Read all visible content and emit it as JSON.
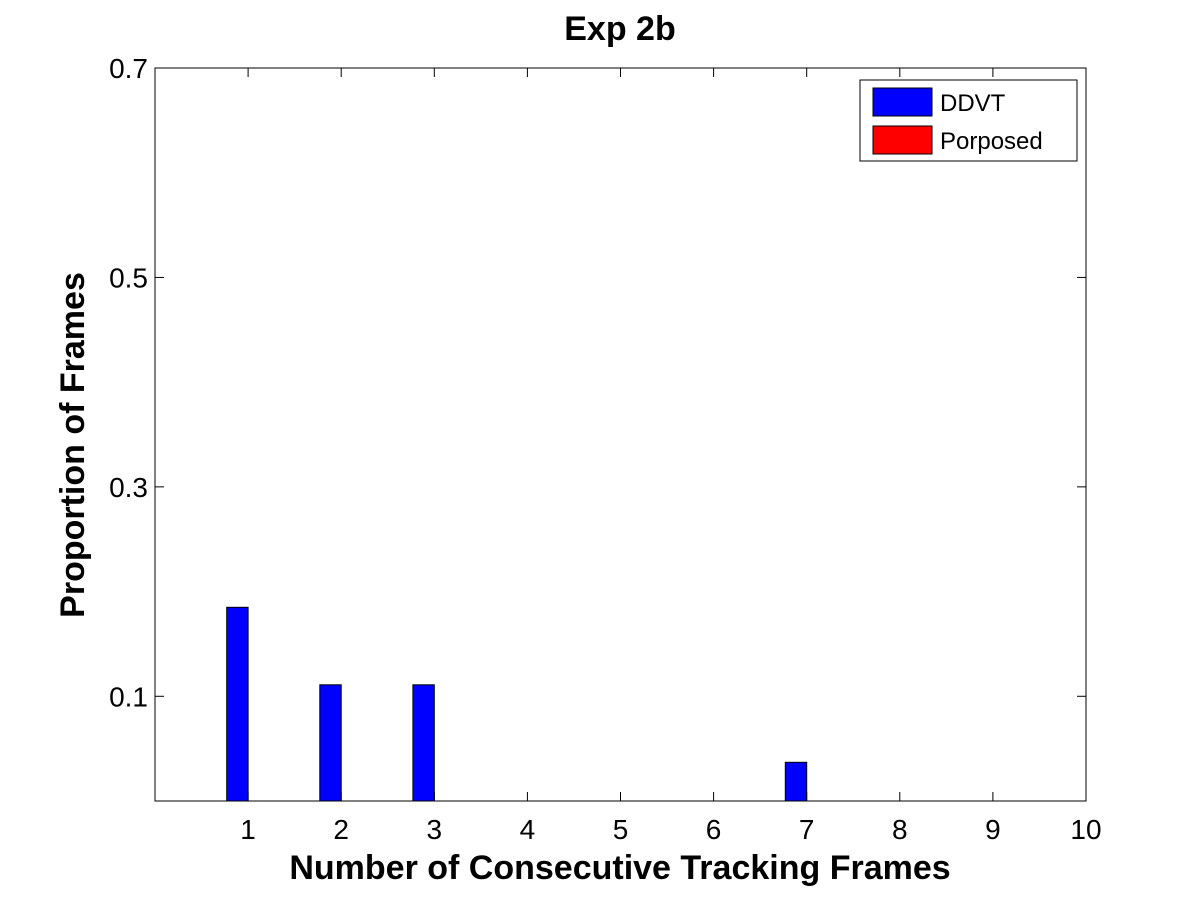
{
  "chart_data": {
    "type": "bar",
    "title": "Exp 2b",
    "xlabel": "Number of Consecutive Tracking Frames",
    "ylabel": "Proportion of Frames",
    "x": [
      1,
      2,
      3,
      4,
      5,
      6,
      7,
      8,
      9,
      10
    ],
    "xlim": [
      0,
      10
    ],
    "ylim": [
      0,
      0.7
    ],
    "xticks": [
      "1",
      "2",
      "3",
      "4",
      "5",
      "6",
      "7",
      "8",
      "9",
      "10"
    ],
    "yticks": [
      {
        "value": 0.1,
        "label": "0.1"
      },
      {
        "value": 0.3,
        "label": "0.3"
      },
      {
        "value": 0.5,
        "label": "0.5"
      },
      {
        "value": 0.7,
        "label": "0.7"
      }
    ],
    "series": [
      {
        "name": "DDVT",
        "color": "#0000ff",
        "values": [
          0.185,
          0.111,
          0.111,
          0,
          0,
          0,
          0.037,
          0,
          0,
          0
        ]
      },
      {
        "name": "Porposed",
        "color": "#ff0000",
        "values": [
          0,
          0,
          0,
          0,
          0,
          0,
          0,
          0,
          0,
          0
        ]
      }
    ],
    "grid": false,
    "legend_position": "top-right"
  }
}
